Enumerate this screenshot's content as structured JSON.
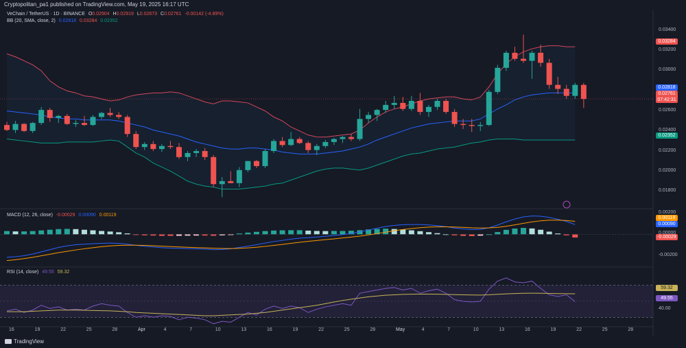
{
  "header": {
    "published": "Cryptopolitan_pa1 published on TradingView.com, May 19, 2025 16:17 UTC"
  },
  "legend": {
    "symbol": "VeChain / TetherUS · 1D · BINANCE",
    "o_label": "O",
    "o_value": "0.02904",
    "h_label": "H",
    "h_value": "0.02919",
    "l_label": "L",
    "l_value": "0.02673",
    "c_label": "C",
    "c_value": "0.02761",
    "change": "-0.00142 (-4.89%)",
    "bb_title": "BB (20, SMA, close, 2)",
    "bb_basis": "0.02818",
    "bb_upper": "0.03284",
    "bb_lower": "0.02352",
    "macd_title": "MACD (12, 26, close)",
    "macd_hist": "-0.00029",
    "macd_line": "0.00090",
    "macd_signal": "0.00119",
    "rsi_title": "RSI (14, close)",
    "rsi_value": "49.55",
    "rsi_ma": "59.32"
  },
  "colors": {
    "up": "#26a69a",
    "down": "#ef5350",
    "upper_band": "#d4465a",
    "basis": "#2962ff",
    "lower_band": "#089981",
    "macd": "#2962ff",
    "signal": "#ff9800",
    "rsi": "#7e57c2",
    "rsi_ma": "#c9b458"
  },
  "price_axis": {
    "ticks": [
      "0.03400",
      "0.03200",
      "0.03000",
      "0.02600",
      "0.02400",
      "0.02200",
      "0.02000",
      "0.01800"
    ],
    "upper_label": "0.03284",
    "basis_label": "0.02818",
    "last_label": "0.02761",
    "countdown": "07:42:31",
    "lower_label": "0.02352"
  },
  "macd_axis": {
    "ticks": [
      "0.00200",
      "0.00000",
      "-0.00200"
    ],
    "signal_label": "0.00119",
    "macd_label": "0.00090",
    "hist_label": "-0.00029"
  },
  "rsi_axis": {
    "ticks": [
      "40.00"
    ],
    "ma_label": "59.32",
    "rsi_label": "49.55"
  },
  "time_axis": {
    "labels": [
      "16",
      "19",
      "22",
      "25",
      "28",
      "Apr",
      "4",
      "7",
      "10",
      "13",
      "16",
      "19",
      "22",
      "25",
      "28",
      "May",
      "4",
      "7",
      "10",
      "13",
      "16",
      "19",
      "22",
      "25",
      "28"
    ]
  },
  "brand": {
    "name": "TradingView"
  },
  "chart_data": {
    "type": "candlestick",
    "title": "VeChain / TetherUS · 1D · BINANCE",
    "ylim": [
      0.0172,
      0.035
    ],
    "candles": [
      {
        "d": "Mar 15",
        "o": 0.025,
        "h": 0.0253,
        "l": 0.0244,
        "c": 0.0245
      },
      {
        "d": "Mar 16",
        "o": 0.0245,
        "h": 0.0254,
        "l": 0.0242,
        "c": 0.0251
      },
      {
        "d": "Mar 17",
        "o": 0.0251,
        "h": 0.0252,
        "l": 0.0243,
        "c": 0.0244
      },
      {
        "d": "Mar 18",
        "o": 0.0244,
        "h": 0.0253,
        "l": 0.0242,
        "c": 0.0252
      },
      {
        "d": "Mar 19",
        "o": 0.0252,
        "h": 0.0268,
        "l": 0.025,
        "c": 0.0265
      },
      {
        "d": "Mar 20",
        "o": 0.0265,
        "h": 0.0267,
        "l": 0.0253,
        "c": 0.0257
      },
      {
        "d": "Mar 21",
        "o": 0.0257,
        "h": 0.026,
        "l": 0.0252,
        "c": 0.0259
      },
      {
        "d": "Mar 22",
        "o": 0.0259,
        "h": 0.0261,
        "l": 0.025,
        "c": 0.0251
      },
      {
        "d": "Mar 23",
        "o": 0.0251,
        "h": 0.0255,
        "l": 0.0248,
        "c": 0.0252
      },
      {
        "d": "Mar 24",
        "o": 0.0252,
        "h": 0.0259,
        "l": 0.0249,
        "c": 0.025
      },
      {
        "d": "Mar 25",
        "o": 0.025,
        "h": 0.026,
        "l": 0.0249,
        "c": 0.0258
      },
      {
        "d": "Mar 26",
        "o": 0.0258,
        "h": 0.0263,
        "l": 0.0256,
        "c": 0.0262
      },
      {
        "d": "Mar 27",
        "o": 0.0262,
        "h": 0.0267,
        "l": 0.0258,
        "c": 0.026
      },
      {
        "d": "Mar 28",
        "o": 0.026,
        "h": 0.0263,
        "l": 0.0256,
        "c": 0.0258
      },
      {
        "d": "Mar 29",
        "o": 0.0258,
        "h": 0.026,
        "l": 0.0238,
        "c": 0.0241
      },
      {
        "d": "Mar 30",
        "o": 0.0241,
        "h": 0.0244,
        "l": 0.0226,
        "c": 0.0228
      },
      {
        "d": "Mar 31",
        "o": 0.0228,
        "h": 0.0233,
        "l": 0.0225,
        "c": 0.0231
      },
      {
        "d": "Apr 1",
        "o": 0.0231,
        "h": 0.0234,
        "l": 0.0224,
        "c": 0.0226
      },
      {
        "d": "Apr 2",
        "o": 0.0226,
        "h": 0.0231,
        "l": 0.0223,
        "c": 0.0229
      },
      {
        "d": "Apr 3",
        "o": 0.0229,
        "h": 0.0234,
        "l": 0.0226,
        "c": 0.0228
      },
      {
        "d": "Apr 4",
        "o": 0.0228,
        "h": 0.0232,
        "l": 0.0216,
        "c": 0.0218
      },
      {
        "d": "Apr 5",
        "o": 0.0218,
        "h": 0.0224,
        "l": 0.0214,
        "c": 0.0222
      },
      {
        "d": "Apr 6",
        "o": 0.0222,
        "h": 0.0226,
        "l": 0.0218,
        "c": 0.0224
      },
      {
        "d": "Apr 7",
        "o": 0.0224,
        "h": 0.0227,
        "l": 0.0215,
        "c": 0.0218
      },
      {
        "d": "Apr 8",
        "o": 0.0218,
        "h": 0.022,
        "l": 0.0188,
        "c": 0.0191
      },
      {
        "d": "Apr 9",
        "o": 0.0191,
        "h": 0.0198,
        "l": 0.0178,
        "c": 0.0194
      },
      {
        "d": "Apr 10",
        "o": 0.0194,
        "h": 0.0204,
        "l": 0.0192,
        "c": 0.0192
      },
      {
        "d": "Apr 11",
        "o": 0.0192,
        "h": 0.0208,
        "l": 0.0188,
        "c": 0.0205
      },
      {
        "d": "Apr 12",
        "o": 0.0205,
        "h": 0.0214,
        "l": 0.0203,
        "c": 0.0214
      },
      {
        "d": "Apr 13",
        "o": 0.0214,
        "h": 0.0215,
        "l": 0.0207,
        "c": 0.0209
      },
      {
        "d": "Apr 14",
        "o": 0.0209,
        "h": 0.0226,
        "l": 0.0207,
        "c": 0.0224
      },
      {
        "d": "Apr 15",
        "o": 0.0224,
        "h": 0.0236,
        "l": 0.0222,
        "c": 0.0234
      },
      {
        "d": "Apr 16",
        "o": 0.0234,
        "h": 0.0238,
        "l": 0.0228,
        "c": 0.023
      },
      {
        "d": "Apr 17",
        "o": 0.023,
        "h": 0.0243,
        "l": 0.0229,
        "c": 0.0236
      },
      {
        "d": "Apr 18",
        "o": 0.0236,
        "h": 0.0238,
        "l": 0.0231,
        "c": 0.0232
      },
      {
        "d": "Apr 19",
        "o": 0.0232,
        "h": 0.0234,
        "l": 0.0222,
        "c": 0.0225
      },
      {
        "d": "Apr 20",
        "o": 0.0225,
        "h": 0.0231,
        "l": 0.022,
        "c": 0.0229
      },
      {
        "d": "Apr 21",
        "o": 0.0229,
        "h": 0.0235,
        "l": 0.0227,
        "c": 0.0233
      },
      {
        "d": "Apr 22",
        "o": 0.0233,
        "h": 0.0237,
        "l": 0.023,
        "c": 0.0236
      },
      {
        "d": "Apr 23",
        "o": 0.0236,
        "h": 0.0239,
        "l": 0.0232,
        "c": 0.0238
      },
      {
        "d": "Apr 24",
        "o": 0.0238,
        "h": 0.0241,
        "l": 0.0234,
        "c": 0.0236
      },
      {
        "d": "Apr 25",
        "o": 0.0236,
        "h": 0.0266,
        "l": 0.0234,
        "c": 0.0256
      },
      {
        "d": "Apr 26",
        "o": 0.0256,
        "h": 0.0263,
        "l": 0.0252,
        "c": 0.026
      },
      {
        "d": "Apr 27",
        "o": 0.026,
        "h": 0.0266,
        "l": 0.0254,
        "c": 0.0265
      },
      {
        "d": "Apr 28",
        "o": 0.0265,
        "h": 0.0274,
        "l": 0.0262,
        "c": 0.027
      },
      {
        "d": "Apr 29",
        "o": 0.027,
        "h": 0.0279,
        "l": 0.0266,
        "c": 0.0272
      },
      {
        "d": "Apr 30",
        "o": 0.0272,
        "h": 0.0278,
        "l": 0.0264,
        "c": 0.0266
      },
      {
        "d": "May 1",
        "o": 0.0266,
        "h": 0.0279,
        "l": 0.0264,
        "c": 0.0274
      },
      {
        "d": "May 2",
        "o": 0.0274,
        "h": 0.0282,
        "l": 0.026,
        "c": 0.0263
      },
      {
        "d": "May 3",
        "o": 0.0263,
        "h": 0.027,
        "l": 0.0258,
        "c": 0.0268
      },
      {
        "d": "May 4",
        "o": 0.0268,
        "h": 0.0276,
        "l": 0.0265,
        "c": 0.0274
      },
      {
        "d": "May 5",
        "o": 0.0274,
        "h": 0.0276,
        "l": 0.0261,
        "c": 0.0263
      },
      {
        "d": "May 6",
        "o": 0.0263,
        "h": 0.0266,
        "l": 0.0248,
        "c": 0.0251
      },
      {
        "d": "May 7",
        "o": 0.0251,
        "h": 0.0256,
        "l": 0.0246,
        "c": 0.025
      },
      {
        "d": "May 8",
        "o": 0.025,
        "h": 0.0256,
        "l": 0.0243,
        "c": 0.0249
      },
      {
        "d": "May 9",
        "o": 0.0249,
        "h": 0.0253,
        "l": 0.0244,
        "c": 0.025
      },
      {
        "d": "May 10",
        "o": 0.025,
        "h": 0.0285,
        "l": 0.0249,
        "c": 0.0283
      },
      {
        "d": "May 11",
        "o": 0.0283,
        "h": 0.031,
        "l": 0.0281,
        "c": 0.0307
      },
      {
        "d": "May 12",
        "o": 0.0307,
        "h": 0.0324,
        "l": 0.0304,
        "c": 0.0322
      },
      {
        "d": "May 13",
        "o": 0.0322,
        "h": 0.0328,
        "l": 0.0314,
        "c": 0.0316
      },
      {
        "d": "May 14",
        "o": 0.0316,
        "h": 0.034,
        "l": 0.0312,
        "c": 0.0314
      },
      {
        "d": "May 15",
        "o": 0.0314,
        "h": 0.0324,
        "l": 0.0296,
        "c": 0.0322
      },
      {
        "d": "May 16",
        "o": 0.0322,
        "h": 0.033,
        "l": 0.0308,
        "c": 0.0312
      },
      {
        "d": "May 17",
        "o": 0.0312,
        "h": 0.0316,
        "l": 0.0286,
        "c": 0.029
      },
      {
        "d": "May 18",
        "o": 0.029,
        "h": 0.0298,
        "l": 0.0281,
        "c": 0.0286
      },
      {
        "d": "May 19",
        "o": 0.0286,
        "h": 0.029,
        "l": 0.0276,
        "c": 0.0279
      },
      {
        "d": "May 20",
        "o": 0.0279,
        "h": 0.0292,
        "l": 0.0276,
        "c": 0.029
      },
      {
        "d": "May 21",
        "o": 0.029,
        "h": 0.0292,
        "l": 0.0267,
        "c": 0.0276
      }
    ],
    "bollinger": {
      "upper": [
        0.0321,
        0.0318,
        0.0314,
        0.031,
        0.0304,
        0.0294,
        0.0288,
        0.0284,
        0.0282,
        0.0279,
        0.0278,
        0.0276,
        0.0274,
        0.0275,
        0.0278,
        0.028,
        0.0281,
        0.0282,
        0.0282,
        0.0283,
        0.0282,
        0.0279,
        0.0276,
        0.0273,
        0.0271,
        0.0274,
        0.0274,
        0.0273,
        0.0272,
        0.0268,
        0.0264,
        0.0258,
        0.0254,
        0.0248,
        0.0244,
        0.024,
        0.0238,
        0.0238,
        0.0239,
        0.024,
        0.0241,
        0.0245,
        0.0252,
        0.0258,
        0.0263,
        0.0266,
        0.0268,
        0.0271,
        0.0274,
        0.0276,
        0.0277,
        0.0278,
        0.0278,
        0.0276,
        0.0275,
        0.0278,
        0.0288,
        0.0301,
        0.0311,
        0.0318,
        0.0323,
        0.0326,
        0.0328,
        0.0329,
        0.0329,
        0.0328,
        0.0328
      ],
      "basis": [
        0.0264,
        0.0263,
        0.0262,
        0.0261,
        0.026,
        0.0258,
        0.0257,
        0.0256,
        0.0256,
        0.0255,
        0.0255,
        0.0255,
        0.0255,
        0.0254,
        0.0252,
        0.025,
        0.0248,
        0.0245,
        0.0243,
        0.0241,
        0.0239,
        0.0236,
        0.0233,
        0.0231,
        0.0229,
        0.0227,
        0.0226,
        0.0226,
        0.0227,
        0.0227,
        0.0226,
        0.0225,
        0.0223,
        0.0222,
        0.0221,
        0.0221,
        0.0221,
        0.0222,
        0.0223,
        0.0224,
        0.0226,
        0.0228,
        0.0231,
        0.0235,
        0.0238,
        0.0241,
        0.0244,
        0.0247,
        0.0249,
        0.0251,
        0.0252,
        0.0253,
        0.0254,
        0.0254,
        0.0254,
        0.0256,
        0.0261,
        0.0266,
        0.027,
        0.0275,
        0.0278,
        0.028,
        0.0281,
        0.0282,
        0.0282,
        0.0282,
        0.0282
      ],
      "lower": [
        0.0236,
        0.0235,
        0.0234,
        0.0233,
        0.0232,
        0.0232,
        0.0232,
        0.0233,
        0.0233,
        0.0233,
        0.0233,
        0.0234,
        0.0235,
        0.0234,
        0.0228,
        0.0222,
        0.0218,
        0.0212,
        0.0208,
        0.0204,
        0.0199,
        0.0194,
        0.0191,
        0.0189,
        0.0188,
        0.0186,
        0.0186,
        0.0186,
        0.0187,
        0.0188,
        0.0189,
        0.0191,
        0.0192,
        0.0195,
        0.0198,
        0.0201,
        0.0204,
        0.0206,
        0.0207,
        0.0207,
        0.0206,
        0.0205,
        0.0207,
        0.021,
        0.0213,
        0.0216,
        0.0219,
        0.0221,
        0.0222,
        0.0224,
        0.0226,
        0.0227,
        0.0228,
        0.023,
        0.0232,
        0.0233,
        0.0235,
        0.0236,
        0.0236,
        0.0236,
        0.0235,
        0.0235,
        0.0235,
        0.0235,
        0.0235,
        0.0235,
        0.0235
      ]
    },
    "macd": {
      "ylim": [
        -0.0028,
        0.0021
      ],
      "macd": [
        -0.0021,
        -0.00205,
        -0.00195,
        -0.0018,
        -0.0016,
        -0.0014,
        -0.0012,
        -0.00105,
        -0.00095,
        -0.0009,
        -0.00085,
        -0.00082,
        -0.0008,
        -0.00082,
        -0.0009,
        -0.001,
        -0.0011,
        -0.00115,
        -0.00122,
        -0.00126,
        -0.00128,
        -0.0013,
        -0.00132,
        -0.00135,
        -0.0014,
        -0.00138,
        -0.00132,
        -0.0012,
        -0.00108,
        -0.00095,
        -0.0008,
        -0.00066,
        -0.00055,
        -0.00044,
        -0.00035,
        -0.0003,
        -0.00025,
        -0.00018,
        -0.0001,
        -2e-05,
        8e-05,
        0.00022,
        0.0004,
        0.00056,
        0.00072,
        0.00082,
        0.00088,
        0.0009,
        0.0009,
        0.00086,
        0.0008,
        0.0007,
        0.00058,
        0.0005,
        0.00044,
        0.00046,
        0.0006,
        0.00085,
        0.00115,
        0.0014,
        0.0016,
        0.00168,
        0.00166,
        0.00155,
        0.00138,
        0.00118,
        0.0009
      ],
      "signal": [
        -0.0024,
        -0.00232,
        -0.00222,
        -0.0021,
        -0.00196,
        -0.00182,
        -0.00168,
        -0.00155,
        -0.00143,
        -0.00132,
        -0.00122,
        -0.00113,
        -0.00106,
        -0.00101,
        -0.00099,
        -0.00099,
        -0.00101,
        -0.00104,
        -0.00108,
        -0.00112,
        -0.00115,
        -0.00118,
        -0.00121,
        -0.00124,
        -0.00127,
        -0.00129,
        -0.0013,
        -0.00128,
        -0.00124,
        -0.00118,
        -0.0011,
        -0.00101,
        -0.00092,
        -0.00082,
        -0.00073,
        -0.00064,
        -0.00056,
        -0.00048,
        -0.00041,
        -0.00033,
        -0.00025,
        -0.00016,
        -5e-05,
        7e-05,
        0.0002,
        0.00033,
        0.00044,
        0.00053,
        0.00061,
        0.00066,
        0.00069,
        0.00069,
        0.00067,
        0.00064,
        0.0006,
        0.00058,
        0.00059,
        0.00064,
        0.00074,
        0.00087,
        0.00101,
        0.00114,
        0.00124,
        0.0013,
        0.0013,
        0.00127,
        0.00119
      ]
    },
    "rsi": {
      "ylim": [
        20,
        90
      ],
      "upper": 70,
      "lower": 30,
      "rsi": [
        38,
        40,
        36,
        39,
        45,
        41,
        43,
        39,
        40,
        39,
        44,
        47,
        45,
        44,
        36,
        30,
        32,
        30,
        32,
        31,
        27,
        30,
        29,
        27,
        22,
        25,
        24,
        30,
        36,
        33,
        40,
        44,
        41,
        44,
        42,
        36,
        40,
        43,
        45,
        47,
        45,
        60,
        62,
        64,
        66,
        67,
        64,
        66,
        60,
        63,
        65,
        60,
        52,
        50,
        49,
        50,
        65,
        75,
        79,
        74,
        73,
        75,
        66,
        58,
        56,
        58,
        49.55
      ],
      "ma": [
        37,
        37,
        37,
        37.5,
        38,
        38.5,
        39,
        39,
        39,
        38.8,
        38.5,
        38.2,
        38,
        37.5,
        37,
        36,
        35.5,
        35,
        34.5,
        34,
        33.5,
        33,
        32.5,
        32,
        32,
        32.5,
        33,
        33.5,
        34,
        35,
        36,
        37.5,
        39,
        40.5,
        42,
        43.5,
        45,
        47,
        49,
        51,
        52.5,
        54,
        55.5,
        56.5,
        57.5,
        58,
        58.5,
        58.7,
        58.8,
        58.8,
        58.7,
        58.5,
        58.2,
        58,
        57.8,
        57.7,
        58,
        58.6,
        59.2,
        59.6,
        59.9,
        60,
        59.9,
        59.7,
        59.5,
        59.4,
        59.32
      ]
    }
  }
}
